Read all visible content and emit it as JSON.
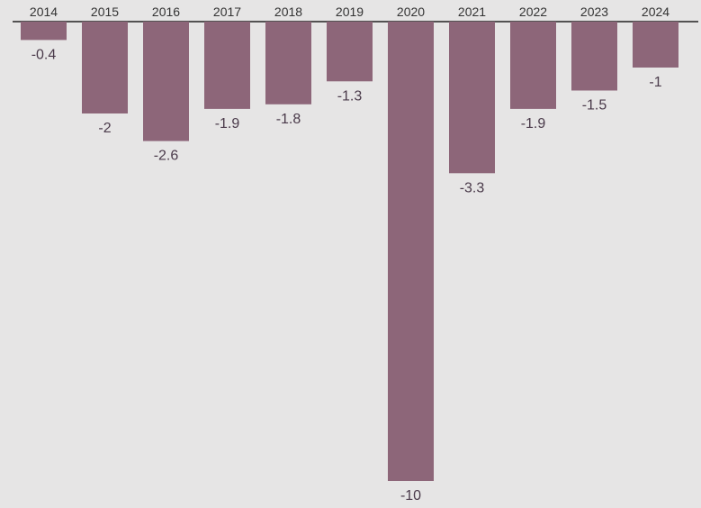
{
  "chart_data": {
    "type": "bar",
    "title": "",
    "xlabel": "",
    "ylabel": "",
    "categories": [
      "2014",
      "2015",
      "2016",
      "2017",
      "2018",
      "2019",
      "2020",
      "2021",
      "2022",
      "2023",
      "2024"
    ],
    "values": [
      -0.4,
      -2,
      -2.6,
      -1.9,
      -1.8,
      -1.3,
      -10,
      -3.3,
      -1.9,
      -1.5,
      -1
    ],
    "value_labels": [
      "-0.4",
      "-2",
      "-2.6",
      "-1.9",
      "-1.8",
      "-1.3",
      "-10",
      "-3.3",
      "-1.9",
      "-1.5",
      "-1"
    ],
    "ylim": [
      -10,
      0
    ],
    "grid": false,
    "legend": "none",
    "bar_color": "#8d6679",
    "axis_color": "#222222",
    "background": "#e6e5e5"
  }
}
